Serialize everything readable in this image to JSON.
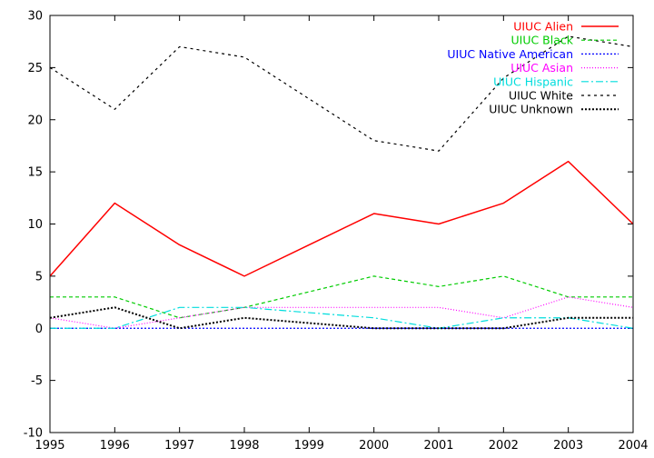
{
  "chart_data": {
    "type": "line",
    "title": "",
    "xlabel": "",
    "ylabel": "",
    "xlim": [
      1995,
      2004
    ],
    "ylim": [
      -10,
      30
    ],
    "x": [
      1995,
      1996,
      1997,
      1998,
      1999,
      2000,
      2001,
      2002,
      2003,
      2004
    ],
    "x_ticks": [
      "1995",
      "1996",
      "1997",
      "1998",
      "1999",
      "2000",
      "2001",
      "2002",
      "2003",
      "2004"
    ],
    "y_ticks": [
      "-10",
      "-5",
      "0",
      "5",
      "10",
      "15",
      "20",
      "25",
      "30"
    ],
    "grid": false,
    "legend_position": "top-right",
    "series": [
      {
        "name": "UIUC Alien",
        "color": "#ff0000",
        "dash": "solid",
        "values": [
          5,
          12,
          8,
          5,
          8,
          11,
          10,
          12,
          16,
          10
        ]
      },
      {
        "name": "UIUC Black",
        "color": "#00cc00",
        "dash": "dashed",
        "values": [
          3,
          3,
          1,
          2,
          3.5,
          5,
          4,
          5,
          3,
          3
        ]
      },
      {
        "name": "UIUC Native American",
        "color": "#0000ff",
        "dash": "dotted",
        "values": [
          0,
          0,
          0,
          0,
          0,
          0,
          0,
          0,
          0,
          0
        ]
      },
      {
        "name": "UIUC Asian",
        "color": "#ff00ff",
        "dash": "fine-dotted",
        "values": [
          1,
          0,
          1,
          2,
          2,
          2,
          2,
          1,
          3,
          2
        ]
      },
      {
        "name": "UIUC Hispanic",
        "color": "#00dddd",
        "dash": "dash-dot",
        "values": [
          0,
          0,
          2,
          2,
          1.5,
          1,
          0,
          1,
          1,
          0
        ]
      },
      {
        "name": "UIUC White",
        "color": "#000000",
        "dash": "fine-dashed",
        "values": [
          25,
          21,
          27,
          26,
          22,
          18,
          17,
          24,
          28,
          27
        ]
      },
      {
        "name": "UIUC Unknown",
        "color": "#000000",
        "dash": "dotted-bold",
        "values": [
          1,
          2,
          0,
          1,
          0.5,
          0,
          0,
          0,
          1,
          1
        ]
      }
    ]
  }
}
